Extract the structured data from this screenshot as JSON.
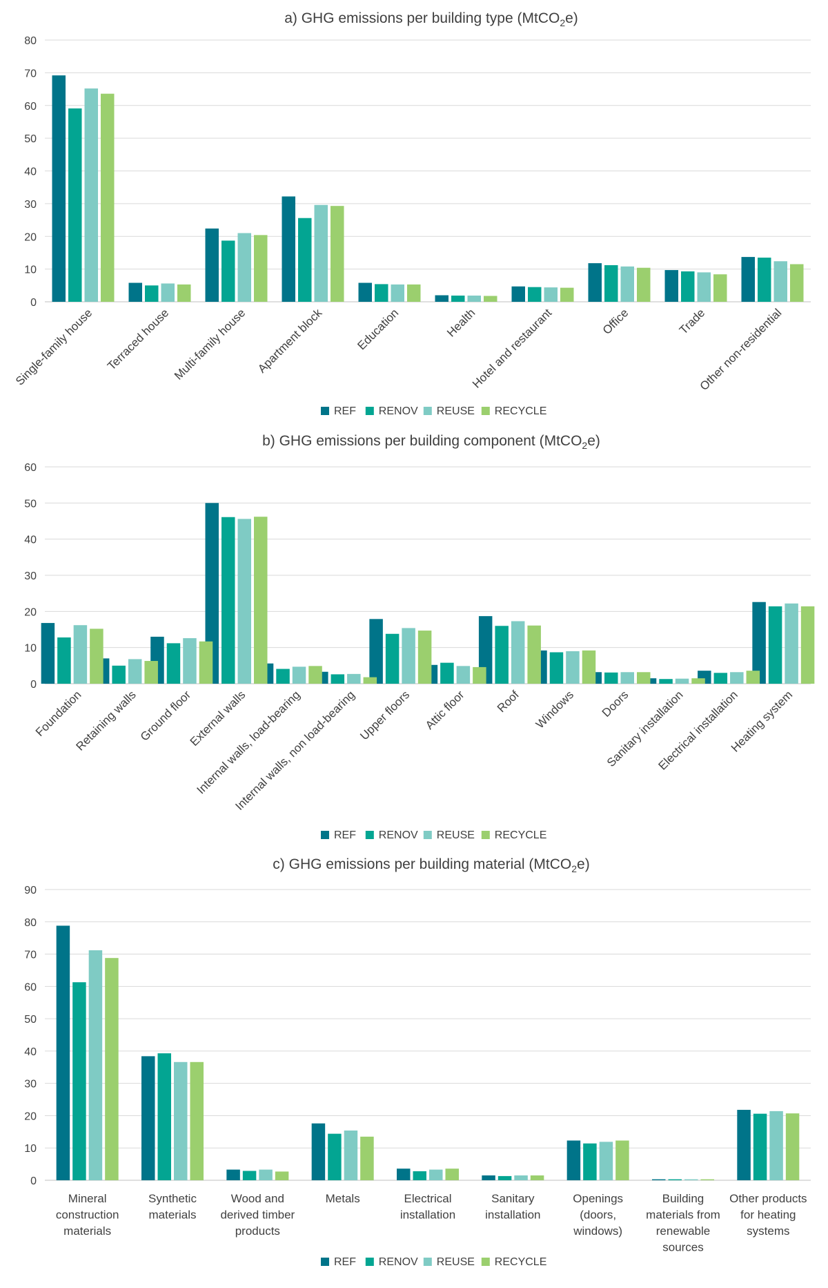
{
  "colors": {
    "REF": "#007489",
    "RENOV": "#03a592",
    "REUSE": "#7fcbc4",
    "RECYCLE": "#9bcf6e"
  },
  "legend": [
    "REF",
    "RENOV",
    "REUSE",
    "RECYCLE"
  ],
  "chart_data": [
    {
      "type": "bar",
      "title_main": "a) GHG emissions per building type (MtCO",
      "title_sub": "2",
      "title_end": "e)",
      "ylim": [
        0,
        80
      ],
      "yticks": [
        0,
        10,
        20,
        30,
        40,
        50,
        60,
        70,
        80
      ],
      "categories": [
        "Single-family house",
        "Terraced house",
        "Multi-family house",
        "Apartment block",
        "Education",
        "Health",
        "Hotel and restaurant",
        "Office",
        "Trade",
        "Other non-residential"
      ],
      "series": [
        {
          "name": "REF",
          "values": [
            69.2,
            5.8,
            22.4,
            32.2,
            5.8,
            2.0,
            4.7,
            11.8,
            9.7,
            13.7
          ]
        },
        {
          "name": "RENOV",
          "values": [
            59.1,
            5.0,
            18.7,
            25.6,
            5.4,
            1.9,
            4.5,
            11.2,
            9.3,
            13.5
          ]
        },
        {
          "name": "REUSE",
          "values": [
            65.2,
            5.6,
            21.0,
            29.6,
            5.3,
            1.9,
            4.4,
            10.8,
            9.0,
            12.4
          ]
        },
        {
          "name": "RECYCLE",
          "values": [
            63.6,
            5.3,
            20.4,
            29.3,
            5.3,
            1.8,
            4.3,
            10.4,
            8.4,
            11.5
          ]
        }
      ]
    },
    {
      "type": "bar",
      "title_main": "b) GHG emissions per building component (MtCO",
      "title_sub": "2",
      "title_end": "e)",
      "ylim": [
        0,
        60
      ],
      "yticks": [
        0,
        10,
        20,
        30,
        40,
        50,
        60
      ],
      "categories": [
        "Foundation",
        "Retaining walls",
        "Ground floor",
        "External walls",
        "Internal walls, load-bearing",
        "Internal walls, non load-bearing",
        "Upper floors",
        "Attic floor",
        "Roof",
        "Windows",
        "Doors",
        "Sanitary installation",
        "Electrical installation",
        "Heating system"
      ],
      "series": [
        {
          "name": "REF",
          "values": [
            16.8,
            7.0,
            13.0,
            50.0,
            5.6,
            3.3,
            17.9,
            5.2,
            18.7,
            9.2,
            3.2,
            1.5,
            3.6,
            22.6
          ]
        },
        {
          "name": "RENOV",
          "values": [
            12.8,
            5.0,
            11.2,
            46.1,
            4.1,
            2.6,
            13.8,
            5.8,
            16.0,
            8.7,
            3.1,
            1.3,
            3.0,
            21.4
          ]
        },
        {
          "name": "REUSE",
          "values": [
            16.2,
            6.8,
            12.6,
            45.6,
            4.7,
            2.7,
            15.4,
            4.9,
            17.3,
            9.0,
            3.2,
            1.4,
            3.2,
            22.2
          ]
        },
        {
          "name": "RECYCLE",
          "values": [
            15.2,
            6.3,
            11.7,
            46.2,
            4.9,
            1.8,
            14.7,
            4.6,
            16.1,
            9.2,
            3.2,
            1.5,
            3.6,
            21.4
          ]
        }
      ]
    },
    {
      "type": "bar",
      "title_main": "c) GHG emissions per building material (MtCO",
      "title_sub": "2",
      "title_end": "e)",
      "ylim": [
        0,
        90
      ],
      "yticks": [
        0,
        10,
        20,
        30,
        40,
        50,
        60,
        70,
        80,
        90
      ],
      "categories": [
        [
          "Mineral",
          "construction",
          "materials"
        ],
        [
          "Synthetic",
          "materials"
        ],
        [
          "Wood and",
          "derived timber",
          "products"
        ],
        [
          "Metals"
        ],
        [
          "Electrical",
          "installation"
        ],
        [
          "Sanitary",
          "installation"
        ],
        [
          "Openings",
          "(doors,",
          "windows)"
        ],
        [
          "Building",
          "materials from",
          "renewable",
          "sources"
        ],
        [
          "Other products",
          "for heating",
          "systems"
        ]
      ],
      "series": [
        {
          "name": "REF",
          "values": [
            78.8,
            38.4,
            3.3,
            17.6,
            3.6,
            1.5,
            12.3,
            0.3,
            21.8
          ]
        },
        {
          "name": "RENOV",
          "values": [
            61.3,
            39.3,
            2.9,
            14.4,
            2.8,
            1.3,
            11.4,
            0.3,
            20.6
          ]
        },
        {
          "name": "REUSE",
          "values": [
            71.2,
            36.6,
            3.3,
            15.4,
            3.3,
            1.5,
            11.9,
            0.3,
            21.4
          ]
        },
        {
          "name": "RECYCLE",
          "values": [
            68.8,
            36.6,
            2.7,
            13.5,
            3.6,
            1.5,
            12.3,
            0.3,
            20.7
          ]
        }
      ]
    }
  ]
}
